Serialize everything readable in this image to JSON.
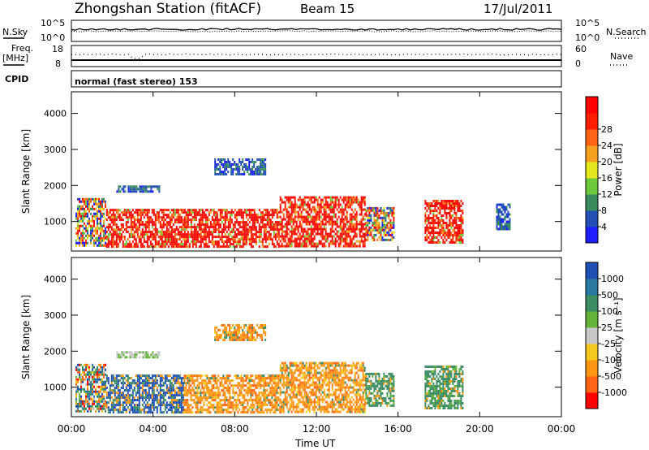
{
  "header": {
    "station": "Zhongshan Station (fitACF)",
    "beam": "Beam 15",
    "date": "17/Jul/2011"
  },
  "aux": {
    "nsky_label": "N.Sky",
    "nsky_top": "10^5",
    "nsky_bottom": "10^0",
    "nsearch_label": "N.Search",
    "nsearch_top": "10^5",
    "nsearch_bottom": "10^0",
    "freq_label_1": "Freq.",
    "freq_label_2": "[MHz]",
    "freq_top": "18",
    "freq_bottom": "8",
    "nave_label": "Nave",
    "nave_top": "60",
    "nave_bottom": "0",
    "cpid_label": "CPID",
    "mode_text": "normal (fast stereo) 153"
  },
  "chart_data": [
    {
      "type": "heatmap",
      "panel": "power",
      "ylabel": "Slant Range [km]",
      "ylim": [
        180,
        4600
      ],
      "yticks": [
        1000,
        2000,
        3000,
        4000
      ],
      "xlim_hours": [
        0,
        24
      ],
      "colorbar_label": "Power [dB]",
      "colorbar_ticks": [
        "4",
        "8",
        "12",
        "16",
        "20",
        "24",
        "28"
      ],
      "colorbar_colors": [
        "#1e1eff",
        "#2350b4",
        "#3a8c5f",
        "#6ec83c",
        "#e6e61e",
        "#f5a01e",
        "#ff6414",
        "#ff1e00",
        "#ff0000"
      ],
      "regions": [
        {
          "t": [
            0.2,
            1.7
          ],
          "r": [
            300,
            1650
          ],
          "level": "mixed"
        },
        {
          "t": [
            1.7,
            10.2
          ],
          "r": [
            300,
            1350
          ],
          "level": "high"
        },
        {
          "t": [
            10.2,
            14.4
          ],
          "r": [
            300,
            1700
          ],
          "level": "high"
        },
        {
          "t": [
            14.4,
            15.8
          ],
          "r": [
            500,
            1400
          ],
          "level": "mixed"
        },
        {
          "t": [
            17.3,
            19.2
          ],
          "r": [
            400,
            1600
          ],
          "level": "high"
        },
        {
          "t": [
            2.2,
            4.3
          ],
          "r": [
            1800,
            2000
          ],
          "level": "low"
        },
        {
          "t": [
            7.0,
            9.5
          ],
          "r": [
            2300,
            2750
          ],
          "level": "low"
        },
        {
          "t": [
            20.8,
            21.5
          ],
          "r": [
            800,
            1500
          ],
          "level": "low"
        }
      ]
    },
    {
      "type": "heatmap",
      "panel": "velocity",
      "ylabel": "Slant Range [km]",
      "ylim": [
        180,
        4600
      ],
      "yticks": [
        1000,
        2000,
        3000,
        4000
      ],
      "xlim_hours": [
        0,
        24
      ],
      "xticks": [
        "00:00",
        "04:00",
        "08:00",
        "12:00",
        "16:00",
        "20:00",
        "00:00"
      ],
      "xlabel": "Time UT",
      "colorbar_label": "Velocity [m s⁻¹]",
      "colorbar_ticks": [
        "1000",
        "500",
        "100",
        "25",
        "-25",
        "-100",
        "-500",
        "-1000"
      ],
      "colorbar_colors": [
        "#1e50b4",
        "#2878a0",
        "#3c8c64",
        "#64b43c",
        "#c8c8c8",
        "#f5c81e",
        "#ff9614",
        "#ff6414",
        "#ff0000"
      ],
      "regions": [
        {
          "t": [
            0.2,
            1.7
          ],
          "r": [
            300,
            1650
          ],
          "level": "mixed"
        },
        {
          "t": [
            1.7,
            5.5
          ],
          "r": [
            300,
            1350
          ],
          "level": "blue"
        },
        {
          "t": [
            5.5,
            10.2
          ],
          "r": [
            300,
            1350
          ],
          "level": "orange"
        },
        {
          "t": [
            10.2,
            14.4
          ],
          "r": [
            300,
            1700
          ],
          "level": "orange"
        },
        {
          "t": [
            14.4,
            15.8
          ],
          "r": [
            500,
            1400
          ],
          "level": "green"
        },
        {
          "t": [
            17.3,
            19.2
          ],
          "r": [
            400,
            1600
          ],
          "level": "green"
        },
        {
          "t": [
            2.2,
            4.3
          ],
          "r": [
            1800,
            2000
          ],
          "level": "grey"
        },
        {
          "t": [
            7.0,
            9.5
          ],
          "r": [
            2300,
            2750
          ],
          "level": "orange"
        }
      ]
    }
  ]
}
